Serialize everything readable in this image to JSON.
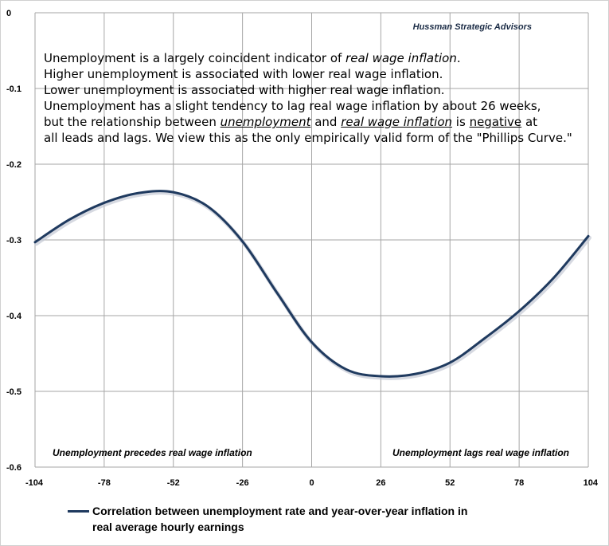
{
  "chart_data": {
    "type": "line",
    "x": [
      -104,
      -91,
      -78,
      -65,
      -52,
      -39,
      -26,
      -13,
      0,
      13,
      26,
      39,
      52,
      65,
      78,
      91,
      104
    ],
    "series": [
      {
        "name": "Correlation between unemployment rate and year-over-year inflation in real average hourly earnings",
        "values": [
          -0.303,
          -0.273,
          -0.251,
          -0.238,
          -0.237,
          -0.256,
          -0.302,
          -0.37,
          -0.435,
          -0.471,
          -0.48,
          -0.477,
          -0.462,
          -0.43,
          -0.394,
          -0.35,
          -0.295
        ]
      }
    ],
    "xlim": [
      -104,
      104
    ],
    "ylim": [
      -0.6,
      0
    ],
    "x_ticks": [
      "-104",
      "-78",
      "-52",
      "-26",
      "0",
      "26",
      "52",
      "78",
      "104"
    ],
    "y_ticks": [
      "0",
      "-0.1",
      "-0.2",
      "-0.3",
      "-0.4",
      "-0.5",
      "-0.6"
    ],
    "x_tick_values": [
      -104,
      -78,
      -52,
      -26,
      0,
      26,
      52,
      78,
      104
    ],
    "y_tick_values": [
      0,
      -0.1,
      -0.2,
      -0.3,
      -0.4,
      -0.5,
      -0.6
    ],
    "grid": true,
    "legend_position": "bottom",
    "colors": {
      "series": "#1f3a5f",
      "grid": "#a6a6a6"
    }
  },
  "source_label": "Hussman Strategic Advisors",
  "note": {
    "l1_pre": "Unemployment is a largely coincident indicator of ",
    "l1_em": "real wage inflation",
    "l1_post": ".",
    "l2": "Higher unemployment is associated with lower real wage inflation.",
    "l3": "Lower unemployment is associated with higher real wage inflation.",
    "l4": "Unemployment has a slight tendency to lag real wage inflation by about 26 weeks,",
    "l5_a": "but the relationship between ",
    "l5_b": "unemployment",
    "l5_c": " and ",
    "l5_d": "real wage inflation",
    "l5_e": " is ",
    "l5_f": "negative",
    "l5_g": " at",
    "l6": "all leads and lags. We view this as the only empirically valid form of the \"Phillips Curve.\""
  },
  "annotations": {
    "left": "Unemployment precedes real wage inflation",
    "right": "Unemployment lags real wage inflation"
  },
  "legend_line1": "Correlation between unemployment rate and year-over-year inflation in",
  "legend_line2": "real average hourly earnings"
}
